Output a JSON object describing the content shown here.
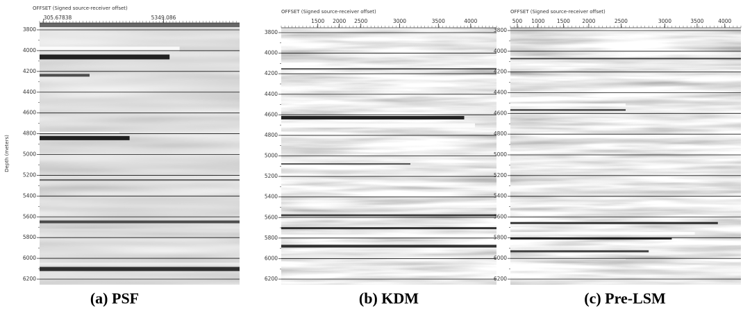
{
  "panels": [
    {
      "caption": "(a) PSF",
      "x_axis_title": "OFFSET (Signed source-receiver offset)",
      "y_axis_title": "Depth (meters)",
      "x_ticks": [
        "305.67838",
        "5349.086"
      ],
      "y_ticks": [
        "3800",
        "4000",
        "4200",
        "4400",
        "4600",
        "4800",
        "5000",
        "5200",
        "5400",
        "5600",
        "5800",
        "6000",
        "6200"
      ]
    },
    {
      "caption": "(b) KDM",
      "x_axis_title": "OFFSET (Signed source-receiver offset)",
      "x_ticks": [
        "1500",
        "2000",
        "2500",
        "3000",
        "3500",
        "4000"
      ],
      "y_ticks": [
        "3800",
        "4000",
        "4200",
        "4400",
        "4600",
        "4800",
        "5000",
        "5200",
        "5400",
        "5600",
        "5800",
        "6000",
        "6200"
      ]
    },
    {
      "caption": "(c) Pre-LSM",
      "x_axis_title": "OFFSET (Signed source-receiver offset)",
      "x_ticks": [
        "500",
        "1000",
        "1500",
        "2000",
        "2500",
        "3000",
        "3500",
        "4000"
      ],
      "y_ticks": [
        "3800",
        "4000",
        "4200",
        "4400",
        "4600",
        "4800",
        "5000",
        "5200",
        "5400",
        "5600",
        "5800",
        "6000",
        "6200"
      ]
    }
  ]
}
